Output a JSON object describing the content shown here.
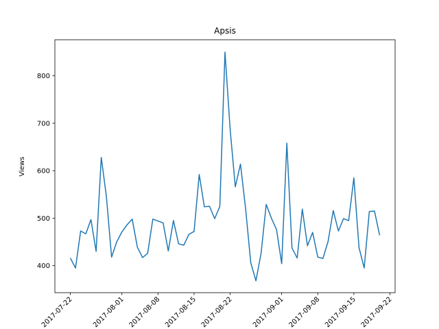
{
  "chart_data": {
    "type": "line",
    "title": "Apsis",
    "xlabel": "",
    "ylabel": "Views",
    "x_tick_labels": [
      "2017-07-22",
      "2017-08-01",
      "2017-08-08",
      "2017-08-15",
      "2017-08-22",
      "2017-09-01",
      "2017-09-08",
      "2017-09-15",
      "2017-09-22"
    ],
    "y_tick_labels": [
      "400",
      "500",
      "600",
      "700",
      "800"
    ],
    "y_ticks": [
      400,
      500,
      600,
      700,
      800
    ],
    "ylim": [
      343,
      876
    ],
    "xlim": [
      "2017-07-19",
      "2017-09-23"
    ],
    "grid": false,
    "color": "#1f77b4",
    "series": [
      {
        "x": [
          "2017-07-22",
          "2017-07-23",
          "2017-07-24",
          "2017-07-25",
          "2017-07-26",
          "2017-07-27",
          "2017-07-28",
          "2017-07-29",
          "2017-07-30",
          "2017-07-31",
          "2017-08-01",
          "2017-08-02",
          "2017-08-03",
          "2017-08-04",
          "2017-08-05",
          "2017-08-06",
          "2017-08-07",
          "2017-08-08",
          "2017-08-09",
          "2017-08-10",
          "2017-08-11",
          "2017-08-12",
          "2017-08-13",
          "2017-08-14",
          "2017-08-15",
          "2017-08-16",
          "2017-08-17",
          "2017-08-18",
          "2017-08-19",
          "2017-08-20",
          "2017-08-21",
          "2017-08-22",
          "2017-08-23",
          "2017-08-24",
          "2017-08-25",
          "2017-08-26",
          "2017-08-27",
          "2017-08-28",
          "2017-08-29",
          "2017-08-30",
          "2017-08-31",
          "2017-09-01",
          "2017-09-02",
          "2017-09-03",
          "2017-09-04",
          "2017-09-05",
          "2017-09-06",
          "2017-09-07",
          "2017-09-08",
          "2017-09-09",
          "2017-09-10",
          "2017-09-11",
          "2017-09-12",
          "2017-09-13",
          "2017-09-14",
          "2017-09-15",
          "2017-09-16",
          "2017-09-17",
          "2017-09-18",
          "2017-09-19",
          "2017-09-20"
        ],
        "values": [
          416,
          395,
          473,
          467,
          497,
          430,
          628,
          545,
          418,
          450,
          471,
          486,
          498,
          439,
          417,
          426,
          498,
          494,
          490,
          431,
          495,
          446,
          443,
          466,
          472,
          592,
          524,
          525,
          499,
          525,
          850,
          687,
          566,
          614,
          520,
          406,
          368,
          426,
          529,
          500,
          476,
          404,
          658,
          437,
          416,
          519,
          442,
          470,
          418,
          415,
          451,
          516,
          473,
          499,
          495,
          585,
          438,
          395,
          514,
          515,
          464
        ]
      }
    ]
  }
}
